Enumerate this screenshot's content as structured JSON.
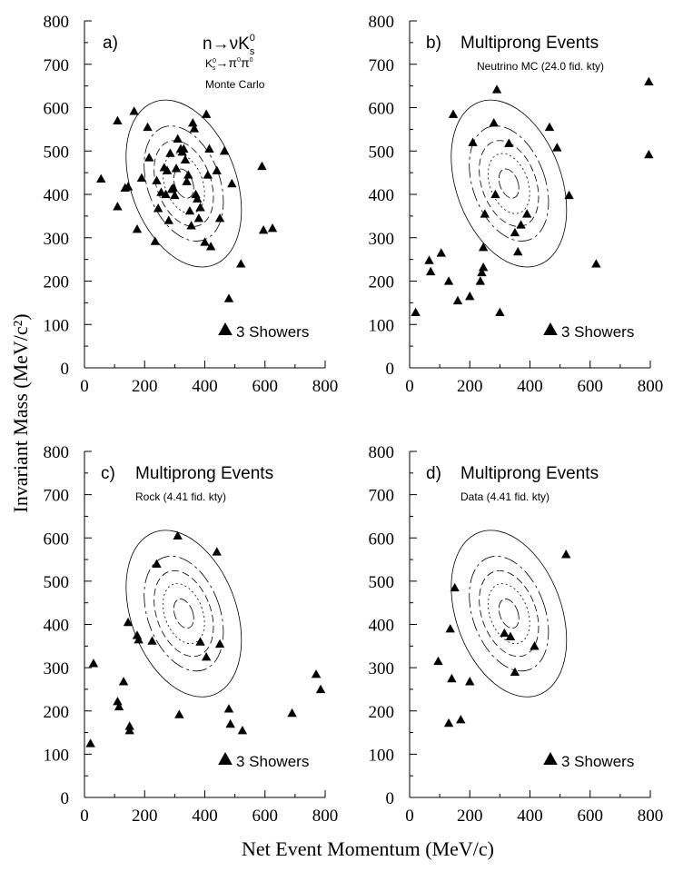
{
  "figure": {
    "ylabel": "Invariant Mass (MeV/c²)",
    "xlabel": "Net Event Momentum (MeV/c)"
  },
  "chart_data": [
    {
      "type": "scatter",
      "panel": "a)",
      "title_parts": [
        "n",
        "→",
        "ν",
        "K",
        "0",
        "s"
      ],
      "subtitle_parts": [
        "K",
        "0",
        "s",
        "→",
        "π",
        "0",
        "π",
        "0"
      ],
      "note": "Monte Carlo",
      "legend": "3 Showers",
      "legend_position": "bottom-right",
      "xlim": [
        0,
        800
      ],
      "ylim": [
        0,
        800
      ],
      "xticks": [
        0,
        200,
        400,
        600,
        800
      ],
      "yticks": [
        0,
        100,
        200,
        300,
        400,
        500,
        600,
        700,
        800
      ],
      "contours": {
        "center": [
          330,
          425
        ],
        "rx": [
          175,
          120,
          90,
          63,
          30
        ],
        "ry": [
          200,
          138,
          103,
          72,
          35
        ],
        "rotation_deg": -20,
        "dash": [
          "",
          "16,4,3,4",
          "8,4",
          "2,3",
          "10,3"
        ]
      },
      "points": [
        [
          55,
          436
        ],
        [
          110,
          570
        ],
        [
          110,
          372
        ],
        [
          135,
          415
        ],
        [
          145,
          418
        ],
        [
          165,
          592
        ],
        [
          175,
          320
        ],
        [
          190,
          438
        ],
        [
          210,
          555
        ],
        [
          215,
          485
        ],
        [
          235,
          292
        ],
        [
          240,
          432
        ],
        [
          245,
          368
        ],
        [
          255,
          405
        ],
        [
          265,
          462
        ],
        [
          270,
          400
        ],
        [
          275,
          455
        ],
        [
          280,
          340
        ],
        [
          285,
          495
        ],
        [
          290,
          412
        ],
        [
          295,
          415
        ],
        [
          300,
          398
        ],
        [
          305,
          460
        ],
        [
          310,
          528
        ],
        [
          320,
          505
        ],
        [
          325,
          498
        ],
        [
          330,
          505
        ],
        [
          335,
          480
        ],
        [
          340,
          430
        ],
        [
          345,
          445
        ],
        [
          350,
          362
        ],
        [
          355,
          328
        ],
        [
          360,
          565
        ],
        [
          365,
          552
        ],
        [
          370,
          400
        ],
        [
          375,
          390
        ],
        [
          380,
          345
        ],
        [
          385,
          370
        ],
        [
          400,
          290
        ],
        [
          405,
          585
        ],
        [
          410,
          445
        ],
        [
          415,
          505
        ],
        [
          420,
          280
        ],
        [
          440,
          455
        ],
        [
          450,
          345
        ],
        [
          465,
          500
        ],
        [
          480,
          160
        ],
        [
          490,
          425
        ],
        [
          520,
          240
        ],
        [
          590,
          465
        ],
        [
          595,
          318
        ],
        [
          625,
          322
        ]
      ]
    },
    {
      "type": "scatter",
      "panel": "b)",
      "title": "Multiprong Events",
      "subtitle": "Neutrino MC (24.0 fid. kty)",
      "legend": "3 Showers",
      "legend_position": "bottom-right",
      "xlim": [
        0,
        800
      ],
      "ylim": [
        0,
        800
      ],
      "xticks": [
        0,
        200,
        400,
        600,
        800
      ],
      "yticks": [
        0,
        100,
        200,
        300,
        400,
        500,
        600,
        700,
        800
      ],
      "contours": {
        "center": [
          330,
          425
        ],
        "rx": [
          175,
          120,
          90,
          63,
          30
        ],
        "ry": [
          200,
          138,
          103,
          72,
          35
        ],
        "rotation_deg": -20,
        "dash": [
          "",
          "16,4,3,4",
          "8,4",
          "2,3",
          "10,3"
        ]
      },
      "points": [
        [
          20,
          128
        ],
        [
          65,
          248
        ],
        [
          70,
          222
        ],
        [
          105,
          265
        ],
        [
          130,
          200
        ],
        [
          145,
          585
        ],
        [
          160,
          155
        ],
        [
          200,
          165
        ],
        [
          210,
          520
        ],
        [
          235,
          200
        ],
        [
          240,
          220
        ],
        [
          245,
          232
        ],
        [
          245,
          278
        ],
        [
          250,
          355
        ],
        [
          280,
          565
        ],
        [
          285,
          400
        ],
        [
          290,
          642
        ],
        [
          300,
          128
        ],
        [
          330,
          518
        ],
        [
          350,
          312
        ],
        [
          360,
          268
        ],
        [
          370,
          330
        ],
        [
          390,
          355
        ],
        [
          465,
          555
        ],
        [
          490,
          508
        ],
        [
          530,
          398
        ],
        [
          620,
          240
        ],
        [
          795,
          660
        ],
        [
          795,
          492
        ]
      ]
    },
    {
      "type": "scatter",
      "panel": "c)",
      "title": "Multiprong Events",
      "subtitle": "Rock (4.41 fid. kty)",
      "legend": "3 Showers",
      "legend_position": "bottom-right",
      "xlim": [
        0,
        800
      ],
      "ylim": [
        0,
        800
      ],
      "xticks": [
        0,
        200,
        400,
        600,
        800
      ],
      "yticks": [
        0,
        100,
        200,
        300,
        400,
        500,
        600,
        700,
        800
      ],
      "contours": {
        "center": [
          330,
          425
        ],
        "rx": [
          175,
          120,
          90,
          63,
          30
        ],
        "ry": [
          200,
          138,
          103,
          72,
          35
        ],
        "rotation_deg": -20,
        "dash": [
          "",
          "16,4,3,4",
          "8,4",
          "2,3",
          "10,3"
        ]
      },
      "points": [
        [
          20,
          125
        ],
        [
          30,
          310
        ],
        [
          110,
          222
        ],
        [
          115,
          210
        ],
        [
          130,
          268
        ],
        [
          145,
          405
        ],
        [
          150,
          165
        ],
        [
          150,
          155
        ],
        [
          175,
          375
        ],
        [
          180,
          365
        ],
        [
          225,
          362
        ],
        [
          240,
          540
        ],
        [
          310,
          605
        ],
        [
          315,
          192
        ],
        [
          385,
          360
        ],
        [
          405,
          325
        ],
        [
          440,
          568
        ],
        [
          450,
          355
        ],
        [
          480,
          205
        ],
        [
          485,
          170
        ],
        [
          525,
          155
        ],
        [
          690,
          195
        ],
        [
          770,
          285
        ],
        [
          785,
          250
        ]
      ]
    },
    {
      "type": "scatter",
      "panel": "d)",
      "title": "Multiprong Events",
      "subtitle": "Data (4.41 fid. kty)",
      "legend": "3 Showers",
      "legend_position": "bottom-right",
      "xlim": [
        0,
        800
      ],
      "ylim": [
        0,
        800
      ],
      "xticks": [
        0,
        200,
        400,
        600,
        800
      ],
      "yticks": [
        0,
        100,
        200,
        300,
        400,
        500,
        600,
        700,
        800
      ],
      "contours": {
        "center": [
          330,
          425
        ],
        "rx": [
          175,
          120,
          90,
          63,
          30
        ],
        "ry": [
          200,
          138,
          103,
          72,
          35
        ],
        "rotation_deg": -20,
        "dash": [
          "",
          "16,4,3,4",
          "8,4",
          "2,3",
          "10,3"
        ]
      },
      "points": [
        [
          95,
          315
        ],
        [
          130,
          172
        ],
        [
          135,
          390
        ],
        [
          140,
          275
        ],
        [
          150,
          485
        ],
        [
          170,
          180
        ],
        [
          200,
          268
        ],
        [
          315,
          380
        ],
        [
          335,
          372
        ],
        [
          350,
          290
        ],
        [
          415,
          350
        ],
        [
          520,
          562
        ]
      ]
    }
  ]
}
